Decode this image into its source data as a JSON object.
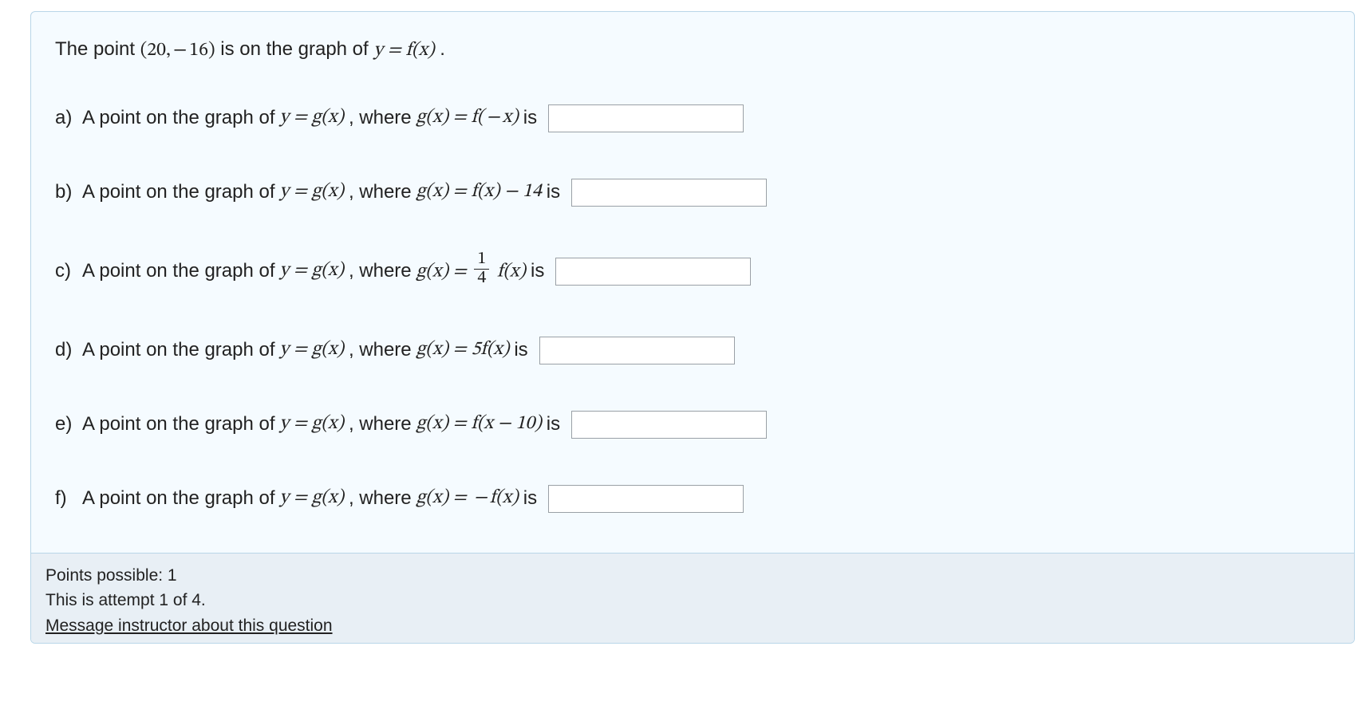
{
  "colors": {
    "card_bg": "#f5fbff",
    "card_border": "#b9d6e8",
    "footer_bg": "#e8eff5",
    "input_border": "#9aa0a6",
    "text": "#222222"
  },
  "intro": {
    "prefix": "The point ",
    "point_math": "(20, − 16)",
    "mid": " is on the graph of ",
    "eq_math": "y = f(x)",
    "suffix": " ."
  },
  "parts": [
    {
      "label": "a)",
      "text_prefix": " A point on the graph of ",
      "lhs_math": "y = g(x)",
      "where": " , where ",
      "rhs_math": "g(x) = f( − x)",
      "trail": "  is"
    },
    {
      "label": "b)",
      "text_prefix": " A point on the graph of ",
      "lhs_math": "y = g(x)",
      "where": " , where ",
      "rhs_math": "g(x) = f(x) − 14",
      "trail": "  is"
    },
    {
      "label": "c)",
      "text_prefix": "  A point on the graph of ",
      "lhs_math": "y = g(x)",
      "where": " , where ",
      "rhs_pre": "g(x) = ",
      "frac_num": "1",
      "frac_den": "4",
      "rhs_post": " f(x)",
      "trail": "  is"
    },
    {
      "label": "d)",
      "text_prefix": " A point on the graph of ",
      "lhs_math": "y = g(x)",
      "where": " , where ",
      "rhs_math": "g(x) = 5f(x)",
      "trail": "  is"
    },
    {
      "label": "e)",
      "text_prefix": " A point on the graph of ",
      "lhs_math": "y = g(x)",
      "where": " , where ",
      "rhs_math": "g(x) = f(x − 10)",
      "trail": "  is"
    },
    {
      "label": "f)",
      "text_prefix": "  A point on the graph of ",
      "lhs_math": "y = g(x)",
      "where": " , where ",
      "rhs_math": "g(x) =  − f(x)",
      "trail": "  is"
    }
  ],
  "footer": {
    "points_line": "Points possible: 1",
    "attempt_line": "This is attempt 1 of 4.",
    "link_text": "Message instructor about this question"
  }
}
